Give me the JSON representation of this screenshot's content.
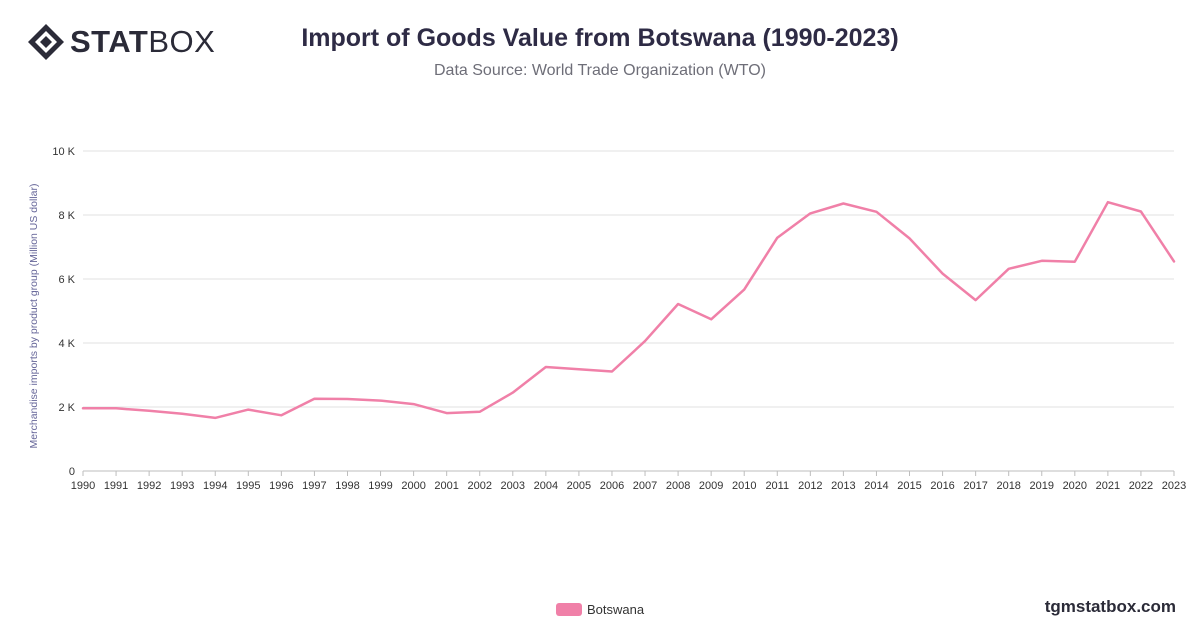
{
  "brand": {
    "logo_bold": "STAT",
    "logo_light": "BOX",
    "watermark": "tgmstatbox.com"
  },
  "header": {
    "title": "Import of Goods Value from Botswana (1990-2023)",
    "subtitle": "Data Source: World Trade Organization (WTO)"
  },
  "colors": {
    "series": "#f080a8",
    "grid": "#e2e2e2",
    "axis_text": "#333333",
    "ylabel_text": "#666699"
  },
  "chart_data": {
    "type": "line",
    "title": "Import of Goods Value from Botswana (1990-2023)",
    "ylabel": "Merchandise imports by product group (Million US dollar)",
    "xlabel": "",
    "ylim": [
      0,
      10000
    ],
    "yticks": [
      {
        "value": 0,
        "label": "0"
      },
      {
        "value": 2000,
        "label": "2 K"
      },
      {
        "value": 4000,
        "label": "4 K"
      },
      {
        "value": 6000,
        "label": "6 K"
      },
      {
        "value": 8000,
        "label": "8 K"
      },
      {
        "value": 10000,
        "label": "10 K"
      }
    ],
    "grid": true,
    "legend_position": "bottom-center",
    "x": [
      "1990",
      "1991",
      "1992",
      "1993",
      "1994",
      "1995",
      "1996",
      "1997",
      "1998",
      "1999",
      "2000",
      "2001",
      "2002",
      "2003",
      "2004",
      "2005",
      "2006",
      "2007",
      "2008",
      "2009",
      "2010",
      "2011",
      "2012",
      "2013",
      "2014",
      "2015",
      "2016",
      "2017",
      "2018",
      "2019",
      "2020",
      "2021",
      "2022",
      "2023"
    ],
    "series": [
      {
        "name": "Botswana",
        "values": [
          1960,
          1960,
          1880,
          1790,
          1660,
          1920,
          1740,
          2260,
          2250,
          2200,
          2090,
          1810,
          1850,
          2450,
          3250,
          3180,
          3110,
          4060,
          5220,
          4740,
          5670,
          7290,
          8050,
          8360,
          8100,
          7270,
          6170,
          5340,
          6320,
          6570,
          6540,
          8400,
          8110,
          6550
        ]
      }
    ]
  }
}
